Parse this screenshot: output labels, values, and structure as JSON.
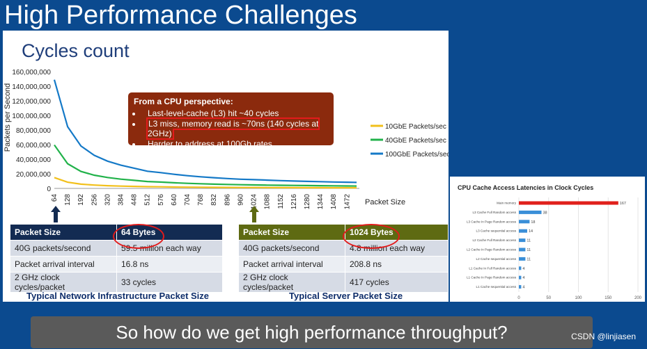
{
  "slide_title": "High Performance Challenges",
  "main_chart": {
    "title": "Cycles count",
    "ylabel": "Packets per Second",
    "xlabel": "Packet Size",
    "y_ticks": [
      "0",
      "20,000,000",
      "40,000,000",
      "60,000,000",
      "80,000,000",
      "100,000,000",
      "120,000,000",
      "140,000,000",
      "160,000,000"
    ],
    "x_ticks": [
      "64",
      "128",
      "192",
      "256",
      "320",
      "384",
      "448",
      "512",
      "576",
      "640",
      "704",
      "768",
      "832",
      "896",
      "960",
      "1024",
      "1088",
      "1152",
      "1216",
      "1280",
      "1344",
      "1408",
      "1472"
    ],
    "legend": [
      "10GbE Packets/sec",
      "40GbE Packets/sec",
      "100GbE Packets/sec"
    ]
  },
  "chart_data": [
    {
      "type": "line",
      "title": "Cycles count",
      "xlabel": "Packet Size",
      "ylabel": "Packets per Second",
      "x": [
        64,
        128,
        192,
        256,
        320,
        384,
        448,
        512,
        576,
        640,
        704,
        768,
        832,
        896,
        960,
        1024,
        1088,
        1152,
        1216,
        1280,
        1344,
        1408,
        1472,
        1518
      ],
      "ylim": [
        0,
        160000000
      ],
      "xlim": [
        64,
        1518
      ],
      "legend_position": "right",
      "series": [
        {
          "name": "10GbE Packets/sec",
          "color": "#f2c01b",
          "values": [
            14880952,
            8445946,
            5813953,
            4528986,
            3731343,
            3177966,
            2766798,
            2349624,
            2162162,
            1930502,
            1742160,
            1587302,
            1461988,
            1355014,
            1259921,
            1197318,
            1130440,
            1068460,
            1013370,
            964630,
            920260,
            880280,
            843880,
            819672
          ]
        },
        {
          "name": "40GbE Packets/sec",
          "color": "#21b24a",
          "values": [
            59523810,
            33783784,
            23255814,
            18115942,
            14925373,
            12711864,
            11071429,
            9398496,
            8648649,
            7722008,
            6968641,
            6349206,
            5847953,
            5420054,
            5039683,
            4789272,
            4521760,
            4273840,
            4053480,
            3858520,
            3681040,
            3521120,
            3375530,
            3278689
          ]
        },
        {
          "name": "100GbE Packets/sec",
          "color": "#1479c7",
          "values": [
            148809524,
            84459459,
            58139535,
            45289855,
            37313433,
            31779661,
            27679574,
            23496241,
            21621622,
            19305019,
            17421603,
            15873016,
            14619883,
            13550136,
            12599206,
            11973180,
            11304400,
            10684600,
            10133700,
            9646300,
            9202600,
            8802800,
            8438800,
            8223684
          ]
        }
      ]
    },
    {
      "type": "bar",
      "title": "CPU Cache Access Latencies in Clock Cycles",
      "categories": [
        "Main memory",
        "L3 Cache Full Random access",
        "L3 Cache In Page Random access",
        "L3 Cache sequential access",
        "L2 Cache Full Random access",
        "L2 Cache In Page Random access",
        "L2 Cache sequential access",
        "L1 Cache In Full Random access",
        "L1 Cache In Page Random access",
        "L1 Cache sequential access"
      ],
      "values": [
        167,
        38,
        18,
        14,
        11,
        11,
        11,
        4,
        4,
        4
      ],
      "xlim": [
        0,
        200
      ],
      "x_ticks": [
        "0",
        "50",
        "100",
        "150",
        "200"
      ],
      "colors": {
        "main_memory": "#e0201b",
        "cache": "#3a8fd8"
      }
    }
  ],
  "callout": {
    "heading": "From a CPU perspective:",
    "items": [
      "Last-level-cache (L3) hit ~40 cycles",
      "L3 miss, memory read is ~70ns (140 cycles at 2GHz)",
      "Harder to address at 100Gb rates"
    ]
  },
  "table_64": {
    "header": [
      "Packet Size",
      "64 Bytes"
    ],
    "rows": [
      [
        "40G packets/second",
        "59.5 million each way"
      ],
      [
        "Packet arrival interval",
        "16.8 ns"
      ],
      [
        "2 GHz clock cycles/packet",
        "33 cycles"
      ]
    ],
    "caption": "Typical Network Infrastructure Packet Size",
    "header_color": "#132b52"
  },
  "table_1024": {
    "header": [
      "Packet Size",
      "1024 Bytes"
    ],
    "rows": [
      [
        "40G packets/second",
        "4.8 million each way"
      ],
      [
        "Packet arrival interval",
        "208.8 ns"
      ],
      [
        "2 GHz clock cycles/packet",
        "417 cycles"
      ]
    ],
    "caption": "Typical Server Packet Size",
    "header_color": "#5e6a12"
  },
  "bottom_question": "So how do we get high performance throughput?",
  "watermark": "CSDN @linjiasen"
}
